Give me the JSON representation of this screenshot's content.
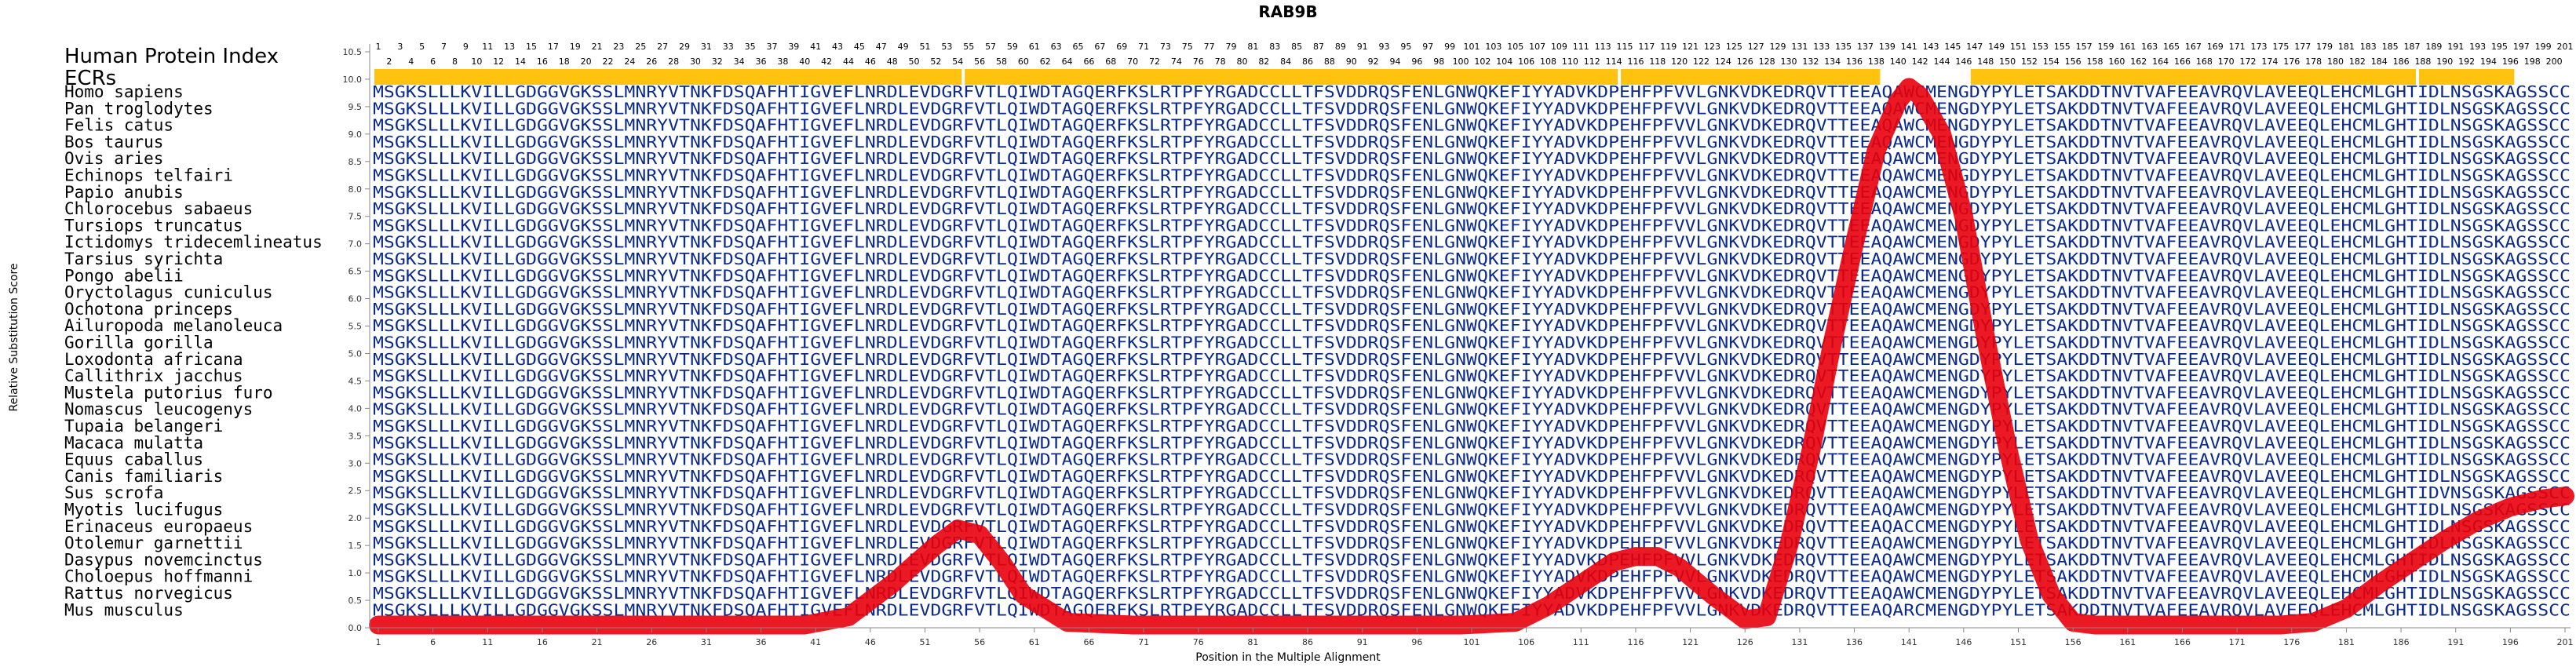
{
  "chart_data": {
    "type": "line",
    "title": "RAB9B",
    "xlabel": "Position in the Multiple Alignment",
    "ylabel": "Relative Substitution Score",
    "ylim": [
      0.0,
      10.5
    ],
    "xlim": [
      1,
      201
    ],
    "y_ticks": [
      "0.0",
      "0.5",
      "1.0",
      "1.5",
      "2.0",
      "2.5",
      "3.0",
      "3.5",
      "4.0",
      "4.5",
      "5.0",
      "5.5",
      "6.0",
      "6.5",
      "7.0",
      "7.5",
      "8.0",
      "8.5",
      "9.0",
      "9.5",
      "10.0",
      "10.5"
    ],
    "x_ticks": [
      1,
      6,
      11,
      16,
      21,
      26,
      31,
      36,
      41,
      46,
      51,
      56,
      61,
      66,
      71,
      76,
      81,
      86,
      91,
      96,
      101,
      106,
      111,
      116,
      121,
      126,
      131,
      136,
      141,
      146,
      151,
      156,
      161,
      166,
      171,
      176,
      181,
      186,
      191,
      196,
      201
    ],
    "header_labels": {
      "index": "Human Protein Index",
      "ecrs": "ECRs"
    },
    "human_index_gaps_after": [
      54,
      114,
      138,
      146,
      187,
      196
    ],
    "ecr_segments": [
      [
        1,
        54
      ],
      [
        55,
        114
      ],
      [
        115,
        138
      ],
      [
        147,
        187
      ],
      [
        188,
        196
      ]
    ],
    "species": [
      "Homo sapiens",
      "Pan troglodytes",
      "Felis catus",
      "Bos taurus",
      "Ovis aries",
      "Echinops telfairi",
      "Papio anubis",
      "Chlorocebus sabaeus",
      "Tursiops truncatus",
      "Ictidomys tridecemlineatus",
      "Tarsius syrichta",
      "Pongo abelii",
      "Oryctolagus cuniculus",
      "Ochotona princeps",
      "Ailuropoda melanoleuca",
      "Gorilla gorilla",
      "Loxodonta africana",
      "Callithrix jacchus",
      "Mustela putorius furo",
      "Nomascus leucogenys",
      "Tupaia belangeri",
      "Macaca mulatta",
      "Equus caballus",
      "Canis familiaris",
      "Sus scrofa",
      "Myotis lucifugus",
      "Erinaceus europaeus",
      "Otolemur garnettii",
      "Dasypus novemcinctus",
      "Choloepus hoffmanni",
      "Rattus norvegicus",
      "Mus musculus"
    ],
    "reference_sequence": "MSGKSLLLKVILLGDGGVGKSSLMNRYVTNKFDSQAFHTIGVEFLNRDLEVDGRFVTLQIWDTAGQERFKSLRTPFYRGADCCLLTFSVDDRQSFENLGNWQKEFIYYADVKDPEHFPFVVLGNKVDKEDRQVTTEEAQAWCMENGDYPYLETSAKDDTNVTVAFEEAVRQVLAVEEQLEHCMLGHTIDLNSGSKAGSSCC",
    "sequence_variants": [
      {
        "row": 26,
        "position": 141,
        "residue": "C"
      },
      {
        "row": 24,
        "position": 190,
        "residue": "V"
      },
      {
        "row": 31,
        "position": 141,
        "residue": "R"
      }
    ],
    "series": [
      {
        "x": [
          1,
          10,
          20,
          30,
          40,
          44,
          48,
          52,
          54,
          56,
          58,
          60,
          64,
          70,
          80,
          90,
          100,
          105,
          108,
          111,
          114,
          116,
          118,
          120,
          123,
          126,
          128,
          130,
          132,
          134,
          136,
          138,
          140,
          141,
          142,
          144,
          146,
          148,
          150,
          152,
          154,
          156,
          158,
          160,
          165,
          170,
          175,
          178,
          181,
          184,
          187,
          190,
          193,
          196,
          199,
          201
        ],
        "y": [
          0.05,
          0.05,
          0.05,
          0.05,
          0.05,
          0.2,
          0.8,
          1.5,
          1.8,
          1.7,
          1.2,
          0.6,
          0.1,
          0.05,
          0.05,
          0.05,
          0.05,
          0.1,
          0.4,
          0.8,
          1.2,
          1.3,
          1.3,
          1.1,
          0.6,
          0.15,
          0.2,
          1.5,
          3.2,
          5.2,
          7.0,
          8.7,
          9.6,
          9.85,
          9.7,
          9.0,
          7.5,
          5.3,
          3.3,
          1.6,
          0.6,
          0.1,
          0.05,
          0.05,
          0.05,
          0.05,
          0.05,
          0.1,
          0.35,
          0.8,
          1.2,
          1.6,
          1.95,
          2.2,
          2.35,
          2.4
        ]
      }
    ]
  }
}
